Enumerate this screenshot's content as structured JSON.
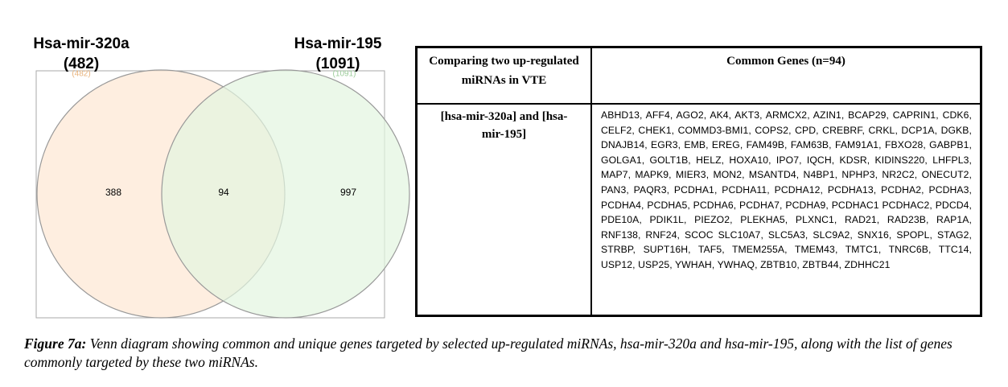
{
  "venn": {
    "sets": [
      {
        "name": "Hsa-mir-320a",
        "count": "(482)"
      },
      {
        "name": "Hsa-mir-195",
        "count": "(1091)"
      }
    ],
    "regions": {
      "left_only": "388",
      "overlap": "94",
      "right_only": "997"
    }
  },
  "table": {
    "header": [
      "Comparing two up-regulated miRNAs in VTE",
      "Common Genes (n=94)"
    ],
    "rows": [
      [
        "[hsa-mir-320a] and [hsa-mir-195]",
        "ABHD13, AFF4, AGO2, AK4, AKT3, ARMCX2, AZIN1, BCAP29, CAPRIN1, CDK6, CELF2, CHEK1, COMMD3-BMI1, COPS2, CPD, CREBRF, CRKL, DCP1A, DGKB, DNAJB14, EGR3, EMB, EREG, FAM49B, FAM63B, FAM91A1, FBXO28, GABPB1, GOLGA1, GOLT1B, HELZ, HOXA10, IPO7, IQCH, KDSR, KIDINS220, LHFPL3, MAP7, MAPK9, MIER3, MON2, MSANTD4, N4BP1, NPHP3, NR2C2, ONECUT2, PAN3, PAQR3, PCDHA1, PCDHA11, PCDHA12, PCDHA13, PCDHA2, PCDHA3, PCDHA4, PCDHA5, PCDHA6, PCDHA7, PCDHA9, PCDHAC1 PCDHAC2, PDCD4, PDE10A, PDIK1L, PIEZO2, PLEKHA5, PLXNC1, RAD21, RAD23B, RAP1A, RNF138, RNF24, SCOC SLC10A7, SLC5A3, SLC9A2, SNX16, SPOPL, STAG2, STRBP, SUPT16H, TAF5, TMEM255A, TMEM43, TMTC1, TNRC6B, TTC14, USP12, USP25, YWHAH, YWHAQ, ZBTB10, ZBTB44, ZDHHC21"
      ]
    ]
  },
  "caption": {
    "label": "Figure 7a:",
    "text": "Venn diagram showing common and unique genes targeted by selected up-regulated miRNAs, hsa-mir-320a and hsa-mir-195, along with the list of genes commonly targeted by these two miRNAs."
  }
}
